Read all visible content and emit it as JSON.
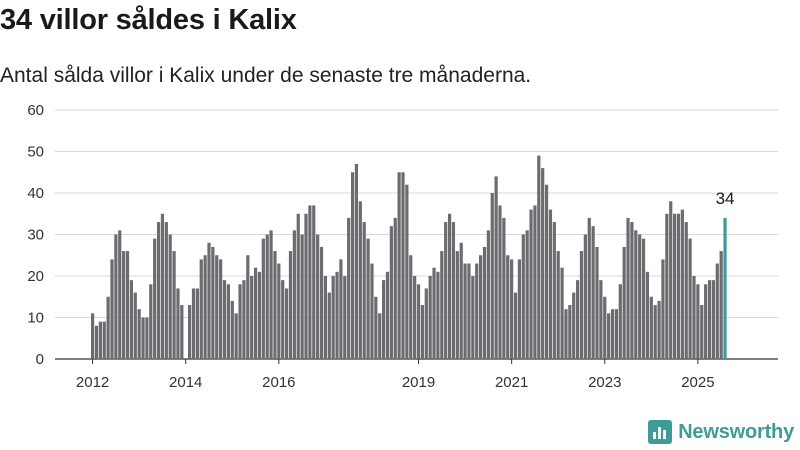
{
  "title": "34 villor såldes i Kalix",
  "subtitle": "Antal sålda villor i Kalix under de senaste tre månaderna.",
  "brand": {
    "name": "Newsworthy",
    "icon": "bar-chart-logo-icon",
    "color": "#3d9b98"
  },
  "chart_data": {
    "type": "bar",
    "title": "34 villor såldes i Kalix",
    "subtitle": "Antal sålda villor i Kalix under de senaste tre månaderna.",
    "xlabel": "",
    "ylabel": "",
    "ylim": [
      0,
      60
    ],
    "yticks": [
      0,
      10,
      20,
      30,
      40,
      50,
      60
    ],
    "xtick_labels": [
      "2012",
      "2014",
      "2016",
      "2019",
      "2021",
      "2023",
      "2025"
    ],
    "xtick_years": [
      2012,
      2014,
      2016,
      2019,
      2021,
      2023,
      2025
    ],
    "grid": true,
    "legend": "none",
    "bar_color": "#6b6b70",
    "highlight_color": "#3d9b98",
    "start": "2012-01",
    "frequency": "monthly",
    "highlight_label": "34",
    "values": [
      11,
      8,
      9,
      9,
      15,
      24,
      30,
      31,
      26,
      26,
      19,
      16,
      12,
      10,
      10,
      18,
      29,
      33,
      35,
      33,
      30,
      26,
      17,
      13,
      0,
      13,
      17,
      17,
      24,
      25,
      28,
      27,
      25,
      24,
      19,
      18,
      14,
      11,
      18,
      19,
      25,
      20,
      22,
      21,
      29,
      30,
      31,
      26,
      23,
      19,
      17,
      26,
      31,
      35,
      30,
      35,
      37,
      37,
      30,
      27,
      20,
      16,
      20,
      21,
      24,
      20,
      34,
      45,
      47,
      38,
      33,
      29,
      23,
      15,
      11,
      19,
      21,
      32,
      34,
      45,
      45,
      42,
      25,
      20,
      18,
      13,
      17,
      20,
      22,
      21,
      26,
      33,
      35,
      33,
      26,
      28,
      23,
      23,
      20,
      23,
      25,
      27,
      31,
      40,
      44,
      37,
      34,
      25,
      24,
      16,
      24,
      30,
      31,
      36,
      37,
      49,
      46,
      42,
      36,
      33,
      26,
      22,
      12,
      13,
      16,
      19,
      26,
      30,
      34,
      32,
      27,
      19,
      15,
      11,
      12,
      12,
      18,
      27,
      34,
      33,
      31,
      30,
      29,
      21,
      15,
      13,
      14,
      24,
      35,
      38,
      35,
      35,
      36,
      33,
      29,
      20,
      18,
      13,
      18,
      19,
      19,
      23,
      26,
      34
    ]
  }
}
